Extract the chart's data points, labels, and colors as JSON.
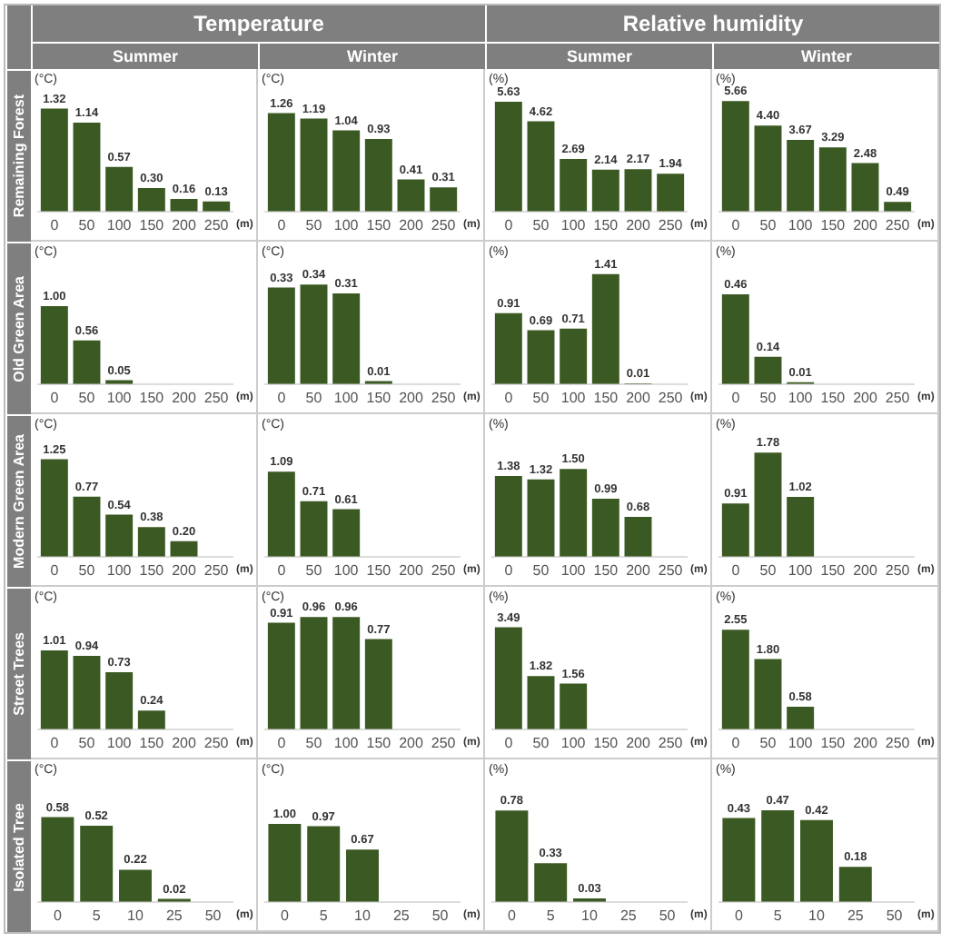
{
  "chart_data": [
    {
      "type": "bar",
      "title": "Temperature",
      "subtitle": "Summer",
      "annotations": [
        "Remaining Forest"
      ],
      "ylabel": "(°C)",
      "xlabel": "(m)",
      "categories": [
        "0",
        "50",
        "100",
        "150",
        "200",
        "250"
      ],
      "values": [
        1.32,
        1.14,
        0.57,
        0.3,
        0.16,
        0.13
      ],
      "value_labels": [
        "1.32",
        "1.14",
        "0.57",
        "0.30",
        "0.16",
        "0.13"
      ],
      "color": "#3b5a23",
      "tick_labels": "x",
      "grid": false
    },
    {
      "type": "bar",
      "subtitle": "Winter",
      "ylabel": "(°C)",
      "xlabel": "(m)",
      "categories": [
        "0",
        "50",
        "100",
        "150",
        "200",
        "250"
      ],
      "values": [
        1.26,
        1.19,
        1.04,
        0.93,
        0.41,
        0.31
      ],
      "value_labels": [
        "1.26",
        "1.19",
        "1.04",
        "0.93",
        "0.41",
        "0.31"
      ],
      "color": "#3b5a23",
      "tick_labels": "x",
      "grid": false
    },
    {
      "type": "bar",
      "title": "Relative humidity",
      "subtitle": "Summer",
      "ylabel": "(%)",
      "xlabel": "(m)",
      "categories": [
        "0",
        "50",
        "100",
        "150",
        "200",
        "250"
      ],
      "values": [
        5.63,
        4.62,
        2.69,
        2.14,
        2.17,
        1.94
      ],
      "value_labels": [
        "5.63",
        "4.62",
        "2.69",
        "2.14",
        "2.17",
        "1.94"
      ],
      "color": "#3b5a23",
      "tick_labels": "x",
      "grid": false
    },
    {
      "type": "bar",
      "subtitle": "Winter",
      "ylabel": "(%)",
      "xlabel": "(m)",
      "categories": [
        "0",
        "50",
        "100",
        "150",
        "200",
        "250"
      ],
      "values": [
        5.66,
        4.4,
        3.67,
        3.29,
        2.48,
        0.49
      ],
      "value_labels": [
        "5.66",
        "4.40",
        "3.67",
        "3.29",
        "2.48",
        "0.49"
      ],
      "color": "#3b5a23",
      "tick_labels": "x",
      "grid": false
    },
    {
      "type": "bar",
      "annotations": [
        "Old Green Area"
      ],
      "ylabel": "(°C)",
      "xlabel": "(m)",
      "categories": [
        "0",
        "50",
        "100",
        "150",
        "200",
        "250"
      ],
      "values": [
        1.0,
        0.56,
        0.05,
        null,
        null,
        null
      ],
      "value_labels": [
        "1.00",
        "0.56",
        "0.05",
        null,
        null,
        null
      ],
      "color": "#3b5a23",
      "tick_labels": "x",
      "grid": false
    },
    {
      "type": "bar",
      "ylabel": "(°C)",
      "xlabel": "(m)",
      "categories": [
        "0",
        "50",
        "100",
        "150",
        "200",
        "250"
      ],
      "values": [
        0.33,
        0.34,
        0.31,
        0.01,
        null,
        null
      ],
      "value_labels": [
        "0.33",
        "0.34",
        "0.31",
        "0.01",
        null,
        null
      ],
      "color": "#3b5a23",
      "tick_labels": "x",
      "grid": false
    },
    {
      "type": "bar",
      "ylabel": "(%)",
      "xlabel": "(m)",
      "categories": [
        "0",
        "50",
        "100",
        "150",
        "200",
        "250"
      ],
      "values": [
        0.91,
        0.69,
        0.71,
        1.41,
        0.01,
        null
      ],
      "value_labels": [
        "0.91",
        "0.69",
        "0.71",
        "1.41",
        "0.01",
        null
      ],
      "color": "#3b5a23",
      "tick_labels": "x",
      "grid": false
    },
    {
      "type": "bar",
      "ylabel": "(%)",
      "xlabel": "(m)",
      "categories": [
        "0",
        "50",
        "100",
        "150",
        "200",
        "250"
      ],
      "values": [
        0.46,
        0.14,
        0.01,
        null,
        null,
        null
      ],
      "value_labels": [
        "0.46",
        "0.14",
        "0.01",
        null,
        null,
        null
      ],
      "color": "#3b5a23",
      "tick_labels": "x",
      "grid": false
    },
    {
      "type": "bar",
      "annotations": [
        "Modern Green Area"
      ],
      "ylabel": "(°C)",
      "xlabel": "(m)",
      "categories": [
        "0",
        "50",
        "100",
        "150",
        "200",
        "250"
      ],
      "values": [
        1.25,
        0.77,
        0.54,
        0.38,
        0.2,
        null
      ],
      "value_labels": [
        "1.25",
        "0.77",
        "0.54",
        "0.38",
        "0.20",
        null
      ],
      "color": "#3b5a23",
      "tick_labels": "x",
      "grid": false
    },
    {
      "type": "bar",
      "ylabel": "(°C)",
      "xlabel": "(m)",
      "categories": [
        "0",
        "50",
        "100",
        "150",
        "200",
        "250"
      ],
      "values": [
        1.09,
        0.71,
        0.61,
        null,
        null,
        null
      ],
      "value_labels": [
        "1.09",
        "0.71",
        "0.61",
        null,
        null,
        null
      ],
      "color": "#3b5a23",
      "tick_labels": "x",
      "grid": false
    },
    {
      "type": "bar",
      "ylabel": "(%)",
      "xlabel": "(m)",
      "categories": [
        "0",
        "50",
        "100",
        "150",
        "200",
        "250"
      ],
      "values": [
        1.38,
        1.32,
        1.5,
        0.99,
        0.68,
        null
      ],
      "value_labels": [
        "1.38",
        "1.32",
        "1.50",
        "0.99",
        "0.68",
        null
      ],
      "color": "#3b5a23",
      "tick_labels": "x",
      "grid": false
    },
    {
      "type": "bar",
      "ylabel": "(%)",
      "xlabel": "(m)",
      "categories": [
        "0",
        "50",
        "100",
        "150",
        "200",
        "250"
      ],
      "values": [
        0.91,
        1.78,
        1.02,
        null,
        null,
        null
      ],
      "value_labels": [
        "0.91",
        "1.78",
        "1.02",
        null,
        null,
        null
      ],
      "color": "#3b5a23",
      "tick_labels": "x",
      "grid": false
    },
    {
      "type": "bar",
      "annotations": [
        "Street Trees"
      ],
      "ylabel": "(°C)",
      "xlabel": "(m)",
      "categories": [
        "0",
        "50",
        "100",
        "150",
        "200",
        "250"
      ],
      "values": [
        1.01,
        0.94,
        0.73,
        0.24,
        null,
        null
      ],
      "value_labels": [
        "1.01",
        "0.94",
        "0.73",
        "0.24",
        null,
        null
      ],
      "color": "#3b5a23",
      "tick_labels": "x",
      "grid": false
    },
    {
      "type": "bar",
      "ylabel": "(°C)",
      "xlabel": "(m)",
      "categories": [
        "0",
        "50",
        "100",
        "150",
        "200",
        "250"
      ],
      "values": [
        0.91,
        0.96,
        0.96,
        0.77,
        null,
        null
      ],
      "value_labels": [
        "0.91",
        "0.96",
        "0.96",
        "0.77",
        null,
        null
      ],
      "color": "#3b5a23",
      "tick_labels": "x",
      "grid": false
    },
    {
      "type": "bar",
      "ylabel": "(%)",
      "xlabel": "(m)",
      "categories": [
        "0",
        "50",
        "100",
        "150",
        "200",
        "250"
      ],
      "values": [
        3.49,
        1.82,
        1.56,
        null,
        null,
        null
      ],
      "value_labels": [
        "3.49",
        "1.82",
        "1.56",
        null,
        null,
        null
      ],
      "color": "#3b5a23",
      "tick_labels": "x",
      "grid": false
    },
    {
      "type": "bar",
      "ylabel": "(%)",
      "xlabel": "(m)",
      "categories": [
        "0",
        "50",
        "100",
        "150",
        "200",
        "250"
      ],
      "values": [
        2.55,
        1.8,
        0.58,
        null,
        null,
        null
      ],
      "value_labels": [
        "2.55",
        "1.80",
        "0.58",
        null,
        null,
        null
      ],
      "color": "#3b5a23",
      "tick_labels": "x",
      "grid": false
    },
    {
      "type": "bar",
      "annotations": [
        "Isolated Tree"
      ],
      "ylabel": "(°C)",
      "xlabel": "(m)",
      "categories": [
        "0",
        "5",
        "10",
        "25",
        "50"
      ],
      "values": [
        0.58,
        0.52,
        0.22,
        0.02,
        null
      ],
      "value_labels": [
        "0.58",
        "0.52",
        "0.22",
        "0.02",
        null
      ],
      "color": "#3b5a23",
      "tick_labels": "x",
      "grid": false
    },
    {
      "type": "bar",
      "ylabel": "(°C)",
      "xlabel": "(m)",
      "categories": [
        "0",
        "5",
        "10",
        "25",
        "50"
      ],
      "values": [
        1.0,
        0.97,
        0.67,
        null,
        null
      ],
      "value_labels": [
        "1.00",
        "0.97",
        "0.67",
        null,
        null
      ],
      "color": "#3b5a23",
      "tick_labels": "x",
      "grid": false
    },
    {
      "type": "bar",
      "ylabel": "(%)",
      "xlabel": "(m)",
      "categories": [
        "0",
        "5",
        "10",
        "25",
        "50"
      ],
      "values": [
        0.78,
        0.33,
        0.03,
        null,
        null
      ],
      "value_labels": [
        "0.78",
        "0.33",
        "0.03",
        null,
        null
      ],
      "color": "#3b5a23",
      "tick_labels": "x",
      "grid": false
    },
    {
      "type": "bar",
      "ylabel": "(%)",
      "xlabel": "(m)",
      "categories": [
        "0",
        "5",
        "10",
        "25",
        "50"
      ],
      "values": [
        0.43,
        0.47,
        0.42,
        0.18,
        null
      ],
      "value_labels": [
        "0.43",
        "0.47",
        "0.42",
        "0.18",
        null
      ],
      "color": "#3b5a23",
      "tick_labels": "x",
      "grid": false
    }
  ]
}
